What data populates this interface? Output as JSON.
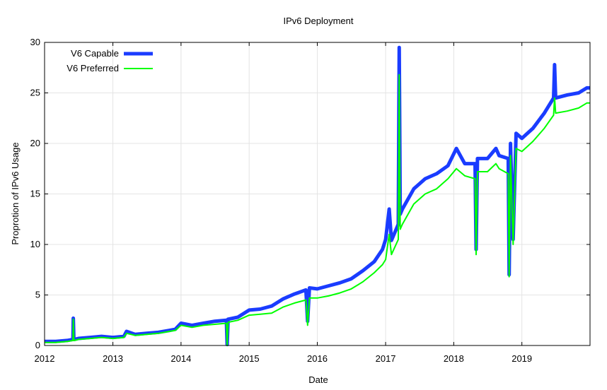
{
  "chart_data": {
    "type": "line",
    "title": "IPv6 Deployment",
    "xlabel": "Date",
    "ylabel": "Proprotion of IPv6 Usage",
    "xlim": [
      "2012-01-01",
      "2020-01-01"
    ],
    "ylim": [
      0,
      30
    ],
    "xticks": [
      "2012",
      "2013",
      "2014",
      "2015",
      "2016",
      "2017",
      "2018",
      "2019"
    ],
    "yticks": [
      0,
      5,
      10,
      15,
      20,
      25,
      30
    ],
    "grid": true,
    "legend_position": "top-left",
    "x": [
      "2012-01-01",
      "2012-03-01",
      "2012-05-01",
      "2012-06-01",
      "2012-06-03",
      "2012-06-06",
      "2012-06-09",
      "2012-07-01",
      "2012-09-01",
      "2012-11-01",
      "2013-01-01",
      "2013-03-01",
      "2013-03-15",
      "2013-05-01",
      "2013-07-01",
      "2013-09-01",
      "2013-11-01",
      "2013-12-01",
      "2014-01-01",
      "2014-03-01",
      "2014-05-01",
      "2014-07-01",
      "2014-09-01",
      "2014-09-05",
      "2014-09-10",
      "2014-11-01",
      "2015-01-01",
      "2015-03-01",
      "2015-05-01",
      "2015-07-01",
      "2015-09-01",
      "2015-11-01",
      "2015-11-10",
      "2015-11-20",
      "2016-01-01",
      "2016-03-01",
      "2016-05-01",
      "2016-07-01",
      "2016-09-01",
      "2016-11-01",
      "2016-12-15",
      "2017-01-01",
      "2017-01-20",
      "2017-02-01",
      "2017-03-10",
      "2017-03-15",
      "2017-03-20",
      "2017-04-01",
      "2017-06-01",
      "2017-08-01",
      "2017-10-01",
      "2017-12-01",
      "2018-01-15",
      "2018-03-01",
      "2018-04-25",
      "2018-05-01",
      "2018-05-08",
      "2018-07-01",
      "2018-08-15",
      "2018-09-01",
      "2018-10-20",
      "2018-10-25",
      "2018-11-01",
      "2018-11-15",
      "2018-12-01",
      "2019-01-01",
      "2019-03-01",
      "2019-05-01",
      "2019-06-20",
      "2019-06-25",
      "2019-07-01",
      "2019-09-01",
      "2019-11-01",
      "2019-12-15",
      "2019-12-31"
    ],
    "series": [
      {
        "name": "V6 Capable",
        "color": "#1a3cff",
        "values": [
          0.4,
          0.4,
          0.5,
          0.6,
          2.7,
          0.6,
          0.6,
          0.7,
          0.8,
          0.9,
          0.8,
          0.9,
          1.4,
          1.1,
          1.2,
          1.3,
          1.5,
          1.6,
          2.2,
          2.0,
          2.2,
          2.4,
          2.5,
          0.1,
          2.6,
          2.8,
          3.5,
          3.6,
          3.9,
          4.6,
          5.1,
          5.5,
          2.4,
          5.7,
          5.6,
          5.9,
          6.2,
          6.6,
          7.4,
          8.3,
          9.5,
          10.5,
          13.5,
          10.4,
          12.0,
          29.5,
          13.0,
          13.5,
          15.5,
          16.5,
          17.0,
          17.8,
          19.5,
          18.0,
          18.0,
          9.5,
          18.5,
          18.5,
          19.5,
          18.8,
          18.5,
          7.0,
          20.0,
          10.5,
          21.0,
          20.5,
          21.5,
          23.0,
          24.5,
          27.8,
          24.5,
          24.8,
          25.0,
          25.5,
          25.5
        ]
      },
      {
        "name": "V6 Preferred",
        "color": "#00ff00",
        "values": [
          0.3,
          0.3,
          0.4,
          0.5,
          2.6,
          0.5,
          0.5,
          0.6,
          0.7,
          0.8,
          0.7,
          0.8,
          1.2,
          1.0,
          1.1,
          1.2,
          1.4,
          1.5,
          2.0,
          1.8,
          2.0,
          2.1,
          2.2,
          0.0,
          2.3,
          2.5,
          3.0,
          3.1,
          3.2,
          3.8,
          4.2,
          4.5,
          2.0,
          4.7,
          4.7,
          4.9,
          5.2,
          5.6,
          6.3,
          7.2,
          8.0,
          8.5,
          11.0,
          9.0,
          10.5,
          26.8,
          11.5,
          12.0,
          14.0,
          15.0,
          15.5,
          16.5,
          17.5,
          16.8,
          16.5,
          9.0,
          17.2,
          17.2,
          18.0,
          17.5,
          17.0,
          6.8,
          18.8,
          10.0,
          19.5,
          19.2,
          20.2,
          21.5,
          22.8,
          24.5,
          23.0,
          23.2,
          23.5,
          24.0,
          24.0
        ]
      }
    ]
  }
}
